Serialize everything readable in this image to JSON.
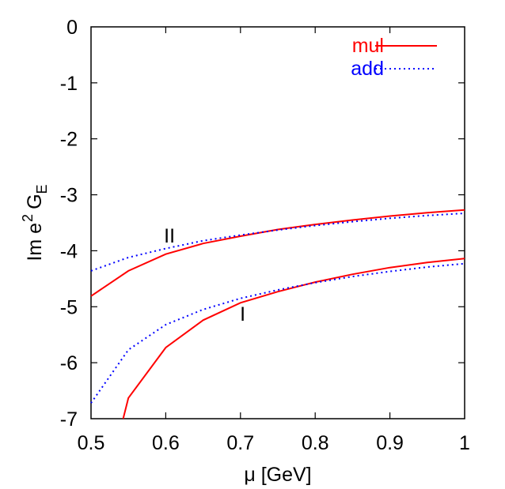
{
  "chart_data": {
    "type": "line",
    "title": "",
    "xlabel": "μ [GeV]",
    "ylabel": "Im e² G_E",
    "ylabel_parts": {
      "main": "Im e",
      "sup": "2",
      "g": "G",
      "sub": "E"
    },
    "xlim": [
      0.5,
      1.0
    ],
    "ylim": [
      -7,
      0
    ],
    "xticks": [
      0.5,
      0.6,
      0.7,
      0.8,
      0.9,
      1
    ],
    "xtick_labels": [
      "0.5",
      "0.6",
      "0.7",
      "0.8",
      "0.9",
      "1"
    ],
    "yticks": [
      0,
      -1,
      -2,
      -3,
      -4,
      -5,
      -6,
      -7
    ],
    "ytick_labels": [
      "0",
      "-1",
      "-2",
      "-3",
      "-4",
      "-5",
      "-6",
      "-7"
    ],
    "grid": false,
    "legend_position": "top-right",
    "legend": [
      {
        "label": "mul",
        "color": "#ff0000",
        "style": "solid"
      },
      {
        "label": "add",
        "color": "#0000ff",
        "style": "dotted"
      }
    ],
    "annotations": [
      {
        "text": "II",
        "x": 0.605,
        "y": -3.85
      },
      {
        "text": "I",
        "x": 0.703,
        "y": -5.25
      }
    ],
    "series": [
      {
        "name": "mul (II)",
        "group": "II",
        "color": "#ff0000",
        "style": "solid",
        "x": [
          0.5,
          0.55,
          0.6,
          0.65,
          0.7,
          0.75,
          0.8,
          0.85,
          0.9,
          0.95,
          1.0
        ],
        "values": [
          -4.81,
          -4.36,
          -4.06,
          -3.87,
          -3.74,
          -3.62,
          -3.53,
          -3.45,
          -3.38,
          -3.32,
          -3.27
        ]
      },
      {
        "name": "add (II)",
        "group": "II",
        "color": "#0000ff",
        "style": "dotted",
        "x": [
          0.5,
          0.55,
          0.6,
          0.65,
          0.7,
          0.75,
          0.8,
          0.85,
          0.9,
          0.95,
          1.0
        ],
        "values": [
          -4.36,
          -4.12,
          -3.96,
          -3.82,
          -3.72,
          -3.63,
          -3.55,
          -3.48,
          -3.42,
          -3.37,
          -3.33
        ]
      },
      {
        "name": "mul (I)",
        "group": "I",
        "color": "#ff0000",
        "style": "solid",
        "x": [
          0.543,
          0.55,
          0.6,
          0.65,
          0.7,
          0.75,
          0.8,
          0.85,
          0.9,
          0.95,
          1.0
        ],
        "values": [
          -7.0,
          -6.63,
          -5.73,
          -5.24,
          -4.93,
          -4.73,
          -4.56,
          -4.42,
          -4.3,
          -4.21,
          -4.14
        ]
      },
      {
        "name": "add (I)",
        "group": "I",
        "color": "#0000ff",
        "style": "dotted",
        "x": [
          0.5,
          0.55,
          0.6,
          0.65,
          0.7,
          0.75,
          0.8,
          0.85,
          0.9,
          0.95,
          1.0
        ],
        "values": [
          -6.72,
          -5.77,
          -5.32,
          -5.05,
          -4.85,
          -4.7,
          -4.57,
          -4.46,
          -4.37,
          -4.29,
          -4.23
        ]
      }
    ]
  }
}
